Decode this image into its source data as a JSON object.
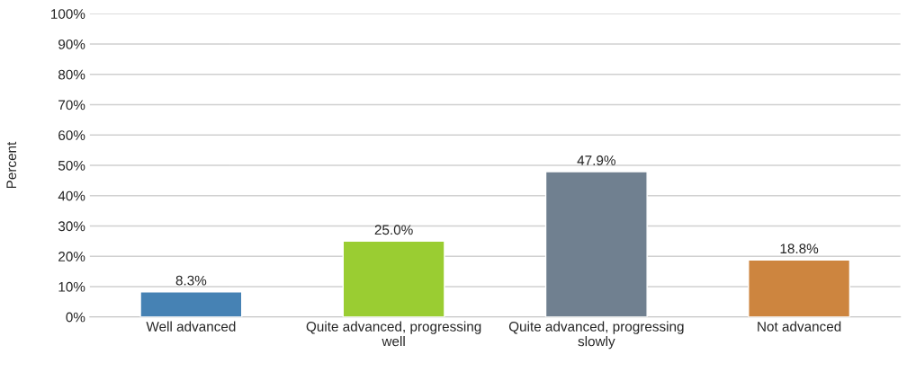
{
  "chart_data": {
    "type": "bar",
    "ylabel": "Percent",
    "categories": [
      "Well advanced",
      "Quite advanced, progressing well",
      "Quite advanced, progressing slowly",
      "Not advanced"
    ],
    "values": [
      8.3,
      25.0,
      47.9,
      18.8
    ],
    "colors": [
      "#4682b4",
      "#9acd32",
      "#708090",
      "#cd853f"
    ],
    "value_labels": [
      "8.3%",
      "25.0%",
      "47.9%",
      "18.8%"
    ],
    "ylim": [
      0,
      100
    ],
    "yticks": [
      {
        "value": 0,
        "label": "0%"
      },
      {
        "value": 10,
        "label": "10%"
      },
      {
        "value": 20,
        "label": "20%"
      },
      {
        "value": 30,
        "label": "30%"
      },
      {
        "value": 40,
        "label": "40%"
      },
      {
        "value": 50,
        "label": "50%"
      },
      {
        "value": 60,
        "label": "60%"
      },
      {
        "value": 70,
        "label": "70%"
      },
      {
        "value": 80,
        "label": "80%"
      },
      {
        "value": 90,
        "label": "90%"
      },
      {
        "value": 100,
        "label": "100%"
      }
    ],
    "grid": "y"
  }
}
